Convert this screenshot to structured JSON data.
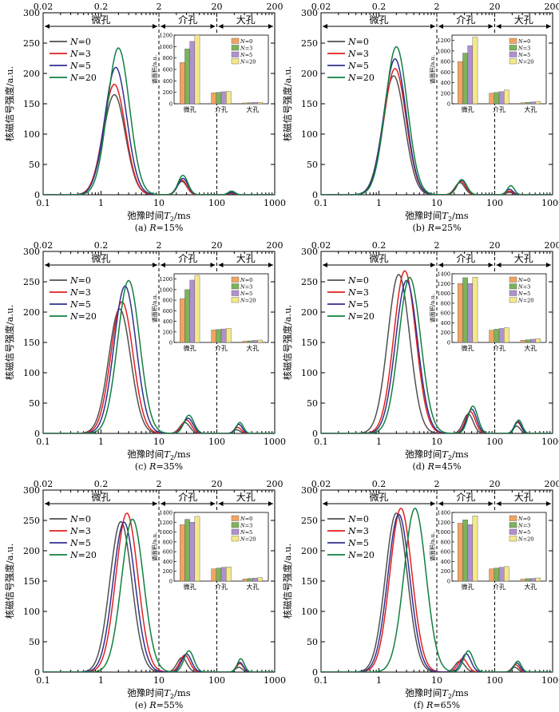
{
  "figure": {
    "top_axis_ticks": [
      "0.02",
      "0.2",
      "2",
      "20",
      "200"
    ],
    "x_ticks": [
      "0.1",
      "1",
      "10",
      "100",
      "1000"
    ],
    "y_ticks": [
      "0",
      "50",
      "100",
      "150",
      "200",
      "250",
      "300"
    ],
    "xlabel_prefix": "弛豫时间",
    "xlabel_var": "T",
    "xlabel_sub": "2",
    "xlabel_unit": "/ms",
    "ylabel": "核磁信号强度/a.u.",
    "regions": [
      "微孔",
      "介孔",
      "大孔"
    ],
    "inset_ylabel": "谱面积/a.u.",
    "legend_var": "N",
    "legend_labels": [
      "=0",
      "=3",
      "=5",
      "=20"
    ],
    "colors": {
      "lines": [
        "#505050",
        "#e02020",
        "#303090",
        "#108040"
      ],
      "bars": [
        "#f4a460",
        "#7cb35b",
        "#b090d0",
        "#f5e88a"
      ]
    }
  },
  "chart_data": [
    {
      "type": "line",
      "label_prefix": "(a)",
      "param": "R",
      "param_value": "=15%",
      "xscale": "log",
      "xlim": [
        0.1,
        1000
      ],
      "ylim": [
        0,
        300
      ],
      "series": [
        {
          "name": "N=0",
          "peaks": [
            [
              1.7,
              165
            ],
            [
              25,
              22
            ],
            [
              180,
              2
            ]
          ]
        },
        {
          "name": "N=3",
          "peaks": [
            [
              1.7,
              182
            ],
            [
              25,
              24
            ],
            [
              180,
              3
            ]
          ]
        },
        {
          "name": "N=5",
          "peaks": [
            [
              1.8,
              210
            ],
            [
              26,
              27
            ],
            [
              180,
              4
            ]
          ]
        },
        {
          "name": "N=20",
          "peaks": [
            [
              2.0,
              242
            ],
            [
              26,
              32
            ],
            [
              180,
              6
            ]
          ]
        }
      ],
      "inset": {
        "categories": [
          "微孔",
          "介孔",
          "大孔"
        ],
        "ylim": [
          0,
          1200
        ],
        "yticks": [
          0,
          200,
          400,
          600,
          800,
          1000,
          1200
        ],
        "values": [
          [
            720,
            190,
            15
          ],
          [
            960,
            200,
            18
          ],
          [
            1090,
            210,
            22
          ],
          [
            1200,
            215,
            25
          ]
        ]
      }
    },
    {
      "type": "line",
      "label_prefix": "(b)",
      "param": "R",
      "param_value": "=25%",
      "xscale": "log",
      "xlim": [
        0.1,
        1000
      ],
      "ylim": [
        0,
        300
      ],
      "series": [
        {
          "name": "N=0",
          "peaks": [
            [
              1.8,
              196
            ],
            [
              25,
              20
            ],
            [
              180,
              4
            ]
          ]
        },
        {
          "name": "N=3",
          "peaks": [
            [
              1.9,
              208
            ],
            [
              26,
              22
            ],
            [
              180,
              6
            ]
          ]
        },
        {
          "name": "N=5",
          "peaks": [
            [
              1.9,
              224
            ],
            [
              27,
              24
            ],
            [
              180,
              9
            ]
          ]
        },
        {
          "name": "N=20",
          "peaks": [
            [
              2.0,
              244
            ],
            [
              27,
              25
            ],
            [
              190,
              15
            ]
          ]
        }
      ],
      "inset": {
        "categories": [
          "微孔",
          "介孔",
          "大孔"
        ],
        "ylim": [
          0,
          1300
        ],
        "yticks": [
          0,
          200,
          400,
          600,
          800,
          1000,
          1200
        ],
        "values": [
          [
            800,
            200,
            20
          ],
          [
            960,
            215,
            28
          ],
          [
            1100,
            230,
            35
          ],
          [
            1260,
            260,
            45
          ]
        ]
      }
    },
    {
      "type": "line",
      "label_prefix": "(c)",
      "param": "R",
      "param_value": "=35%",
      "xscale": "log",
      "xlim": [
        0.1,
        1000
      ],
      "ylim": [
        0,
        300
      ],
      "series": [
        {
          "name": "N=0",
          "peaks": [
            [
              2.1,
              205
            ],
            [
              28,
              18
            ],
            [
              220,
              6
            ]
          ]
        },
        {
          "name": "N=3",
          "peaks": [
            [
              2.3,
              217
            ],
            [
              30,
              22
            ],
            [
              230,
              10
            ]
          ]
        },
        {
          "name": "N=5",
          "peaks": [
            [
              2.6,
              243
            ],
            [
              32,
              25
            ],
            [
              240,
              15
            ]
          ]
        },
        {
          "name": "N=20",
          "peaks": [
            [
              3.0,
              252
            ],
            [
              33,
              30
            ],
            [
              250,
              18
            ]
          ]
        }
      ],
      "inset": {
        "categories": [
          "微孔",
          "介孔",
          "大孔"
        ],
        "ylim": [
          0,
          1300
        ],
        "yticks": [
          0,
          200,
          400,
          600,
          800,
          1000,
          1200
        ],
        "values": [
          [
            830,
            235,
            25
          ],
          [
            1000,
            245,
            30
          ],
          [
            1180,
            255,
            38
          ],
          [
            1270,
            265,
            45
          ]
        ]
      }
    },
    {
      "type": "line",
      "label_prefix": "(d)",
      "param": "R",
      "param_value": "=45%",
      "xscale": "log",
      "xlim": [
        0.1,
        1000
      ],
      "ylim": [
        0,
        300
      ],
      "series": [
        {
          "name": "N=0",
          "peaks": [
            [
              2.2,
              262
            ],
            [
              35,
              32
            ],
            [
              240,
              12
            ]
          ]
        },
        {
          "name": "N=3",
          "peaks": [
            [
              2.8,
              268
            ],
            [
              38,
              36
            ],
            [
              250,
              18
            ]
          ]
        },
        {
          "name": "N=5",
          "peaks": [
            [
              3.0,
              252
            ],
            [
              40,
              40
            ],
            [
              250,
              20
            ]
          ]
        },
        {
          "name": "N=20",
          "peaks": [
            [
              3.4,
              257
            ],
            [
              42,
              45
            ],
            [
              260,
              22
            ]
          ]
        }
      ],
      "inset": {
        "categories": [
          "微孔",
          "介孔",
          "大孔"
        ],
        "ylim": [
          0,
          1400
        ],
        "yticks": [
          0,
          200,
          400,
          600,
          800,
          1000,
          1200,
          1400
        ],
        "values": [
          [
            1200,
            250,
            45
          ],
          [
            1320,
            270,
            55
          ],
          [
            1200,
            285,
            65
          ],
          [
            1330,
            300,
            75
          ]
        ]
      }
    },
    {
      "type": "line",
      "label_prefix": "(e)",
      "param": "R",
      "param_value": "=55%",
      "xscale": "log",
      "xlim": [
        0.1,
        1000
      ],
      "ylim": [
        0,
        300
      ],
      "series": [
        {
          "name": "N=0",
          "peaks": [
            [
              2.2,
              248
            ],
            [
              25,
              24
            ],
            [
              240,
              8
            ]
          ]
        },
        {
          "name": "N=3",
          "peaks": [
            [
              2.8,
              262
            ],
            [
              28,
              28
            ],
            [
              250,
              14
            ]
          ]
        },
        {
          "name": "N=5",
          "peaks": [
            [
              2.5,
              247
            ],
            [
              30,
              30
            ],
            [
              250,
              16
            ]
          ]
        },
        {
          "name": "N=20",
          "peaks": [
            [
              3.5,
              252
            ],
            [
              33,
              35
            ],
            [
              260,
              22
            ]
          ]
        }
      ],
      "inset": {
        "categories": [
          "微孔",
          "介孔",
          "大孔"
        ],
        "ylim": [
          0,
          1400
        ],
        "yticks": [
          0,
          200,
          400,
          600,
          800,
          1000,
          1200,
          1400
        ],
        "values": [
          [
            1150,
            250,
            45
          ],
          [
            1260,
            265,
            55
          ],
          [
            1200,
            280,
            60
          ],
          [
            1320,
            290,
            70
          ]
        ]
      }
    },
    {
      "type": "line",
      "label_prefix": "(f)",
      "param": "R",
      "param_value": "=65%",
      "xscale": "log",
      "xlim": [
        0.1,
        1000
      ],
      "ylim": [
        0,
        300
      ],
      "series": [
        {
          "name": "N=0",
          "peaks": [
            [
              2.0,
              262
            ],
            [
              25,
              18
            ],
            [
              220,
              8
            ]
          ]
        },
        {
          "name": "N=3",
          "peaks": [
            [
              2.4,
              270
            ],
            [
              28,
              22
            ],
            [
              230,
              12
            ]
          ]
        },
        {
          "name": "N=5",
          "peaks": [
            [
              2.2,
              260
            ],
            [
              32,
              30
            ],
            [
              240,
              15
            ]
          ]
        },
        {
          "name": "N=20",
          "peaks": [
            [
              4.2,
              270
            ],
            [
              35,
              35
            ],
            [
              250,
              18
            ]
          ]
        }
      ],
      "inset": {
        "categories": [
          "微孔",
          "介孔",
          "大孔"
        ],
        "ylim": [
          0,
          1400
        ],
        "yticks": [
          0,
          200,
          400,
          600,
          800,
          1000,
          1200,
          1400
        ],
        "values": [
          [
            1180,
            250,
            40
          ],
          [
            1250,
            265,
            50
          ],
          [
            1150,
            280,
            55
          ],
          [
            1330,
            295,
            65
          ]
        ]
      }
    }
  ]
}
